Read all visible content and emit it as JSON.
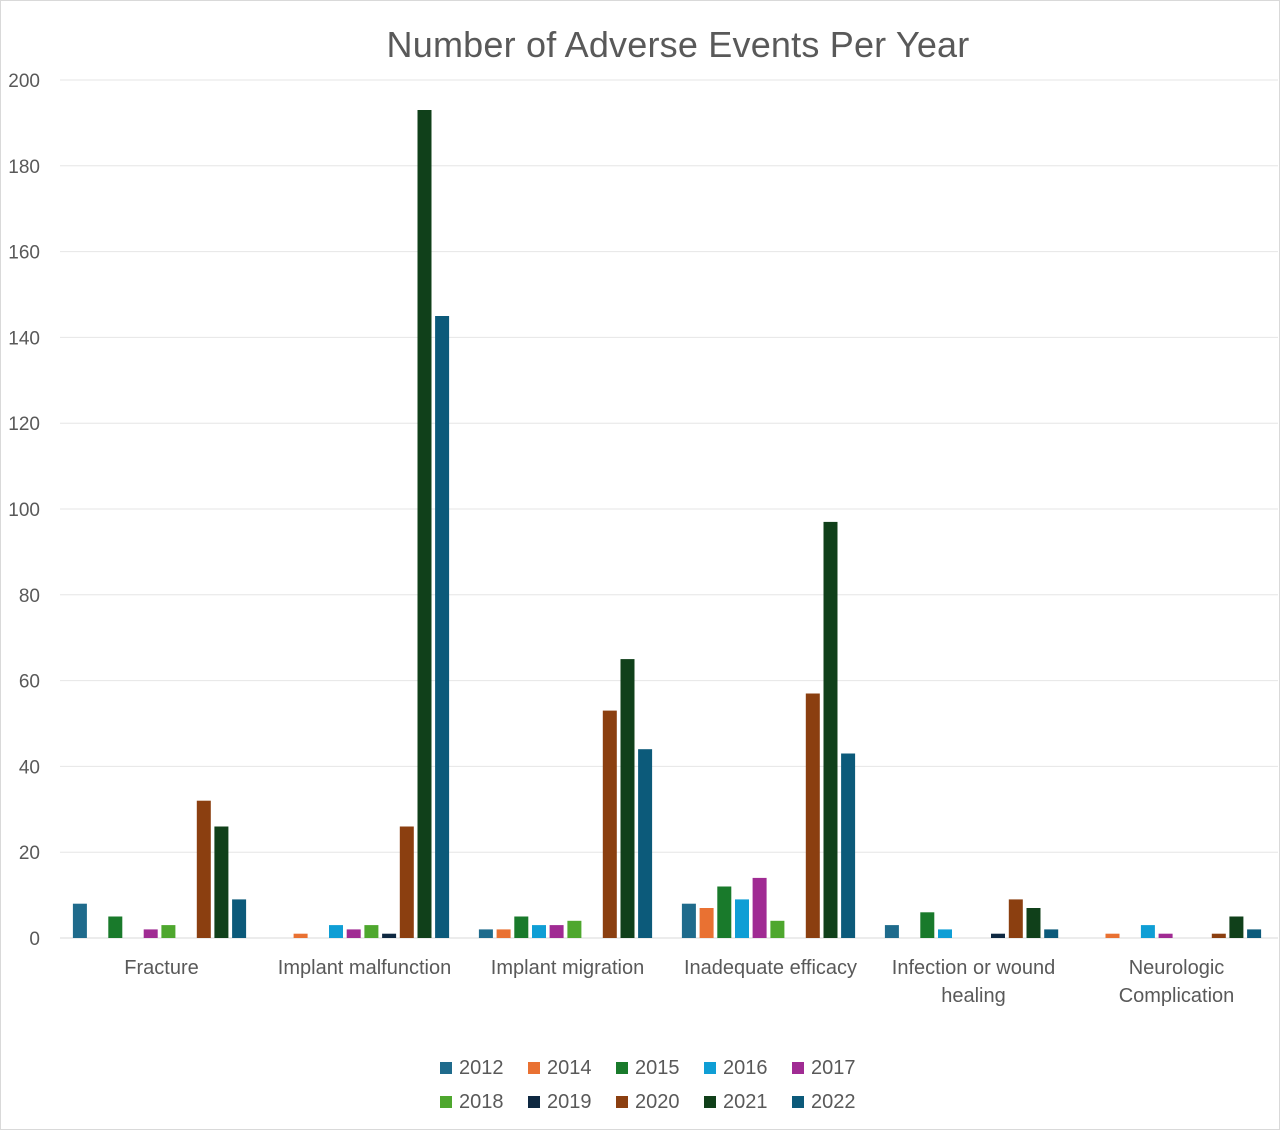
{
  "chart_data": {
    "type": "bar",
    "title": "Number of Adverse Events Per Year",
    "xlabel": "",
    "ylabel": "",
    "ylim": [
      0,
      200
    ],
    "yticks": [
      "0",
      "20",
      "40",
      "60",
      "80",
      "100",
      "120",
      "140",
      "160",
      "180",
      "200"
    ],
    "grid": true,
    "legend_position": "bottom",
    "categories": [
      [
        "Fracture"
      ],
      [
        "Implant malfunction"
      ],
      [
        "Implant migration"
      ],
      [
        "Inadequate efficacy"
      ],
      [
        "Infection or wound",
        "healing"
      ],
      [
        "Neurologic",
        "Complication"
      ]
    ],
    "series": [
      {
        "name": "2012",
        "color": "#1f6b8c",
        "values": [
          8,
          0,
          2,
          8,
          3,
          0
        ]
      },
      {
        "name": "2014",
        "color": "#e97132",
        "values": [
          0,
          1,
          2,
          7,
          0,
          1
        ]
      },
      {
        "name": "2015",
        "color": "#197a2b",
        "values": [
          5,
          0,
          5,
          12,
          6,
          0
        ]
      },
      {
        "name": "2016",
        "color": "#0f9ed5",
        "values": [
          0,
          3,
          3,
          9,
          2,
          3
        ]
      },
      {
        "name": "2017",
        "color": "#a02b93",
        "values": [
          2,
          2,
          3,
          14,
          0,
          1
        ]
      },
      {
        "name": "2018",
        "color": "#4ea72e",
        "values": [
          3,
          3,
          4,
          4,
          0,
          0
        ]
      },
      {
        "name": "2019",
        "color": "#0e2841",
        "values": [
          0,
          1,
          0,
          0,
          1,
          0
        ]
      },
      {
        "name": "2020",
        "color": "#8b3f10",
        "values": [
          32,
          26,
          53,
          57,
          9,
          1
        ]
      },
      {
        "name": "2021",
        "color": "#10401a",
        "values": [
          26,
          193,
          65,
          97,
          7,
          5
        ]
      },
      {
        "name": "2022",
        "color": "#0c5a7a",
        "values": [
          9,
          145,
          44,
          43,
          2,
          2
        ]
      }
    ]
  }
}
